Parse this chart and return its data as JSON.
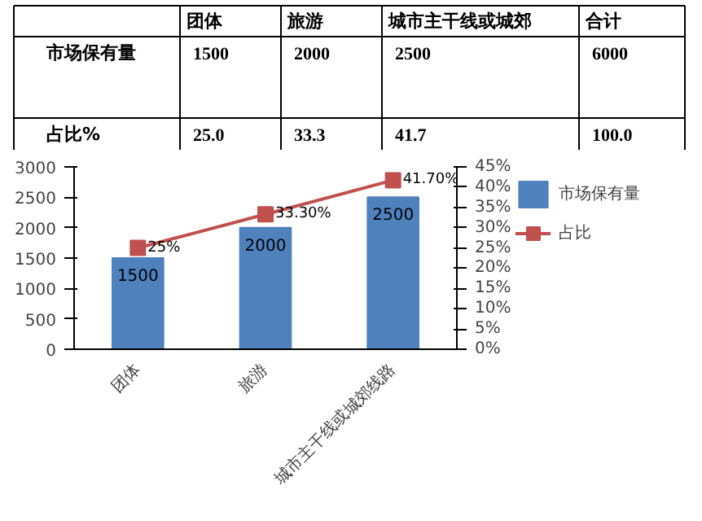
{
  "chart_data": [
    {
      "type": "other",
      "data_labels": true,
      "categories": [
        "团体",
        "旅游",
        "城市主干线或城郊",
        "合计"
      ],
      "series": [
        {
          "name": "市场保有量",
          "values": [
            1500,
            2000,
            2500,
            6000
          ]
        },
        {
          "name": "占比%",
          "values": [
            25.0,
            33.3,
            41.7,
            100.0
          ],
          "value_labels": [
            "25.0",
            "33.3",
            "41.7",
            "100.0"
          ]
        }
      ]
    },
    {
      "type": "bar",
      "categories": [
        "团体",
        "旅游",
        "城市主干线或城郊线路"
      ],
      "series": [
        {
          "name": "市场保有量",
          "color": "#4f81bd",
          "values": [
            1500,
            2000,
            2500
          ],
          "value_labels": [
            "1500",
            "2000",
            "2500"
          ]
        },
        {
          "name": "占比",
          "type": "line",
          "axis": "y2",
          "color": "#c0504d",
          "values": [
            25,
            33.3,
            41.7
          ],
          "value_labels": [
            "25%",
            "33.30%",
            "41.70%"
          ],
          "marker": "square"
        }
      ],
      "ylim": [
        0,
        3000
      ],
      "yticks": [
        0,
        500,
        1000,
        1500,
        2000,
        2500,
        3000
      ],
      "y2lim": [
        0,
        45
      ],
      "y2ticks": [
        {
          "value": 0,
          "label": "0%"
        },
        {
          "value": 5,
          "label": "5%"
        },
        {
          "value": 10,
          "label": "10%"
        },
        {
          "value": 15,
          "label": "15%"
        },
        {
          "value": 20,
          "label": "20%"
        },
        {
          "value": 25,
          "label": "25%"
        },
        {
          "value": 30,
          "label": "30%"
        },
        {
          "value": 35,
          "label": "35%"
        },
        {
          "value": 40,
          "label": "40%"
        },
        {
          "value": 45,
          "label": "45%"
        }
      ],
      "legend": "right",
      "grid": false
    }
  ]
}
